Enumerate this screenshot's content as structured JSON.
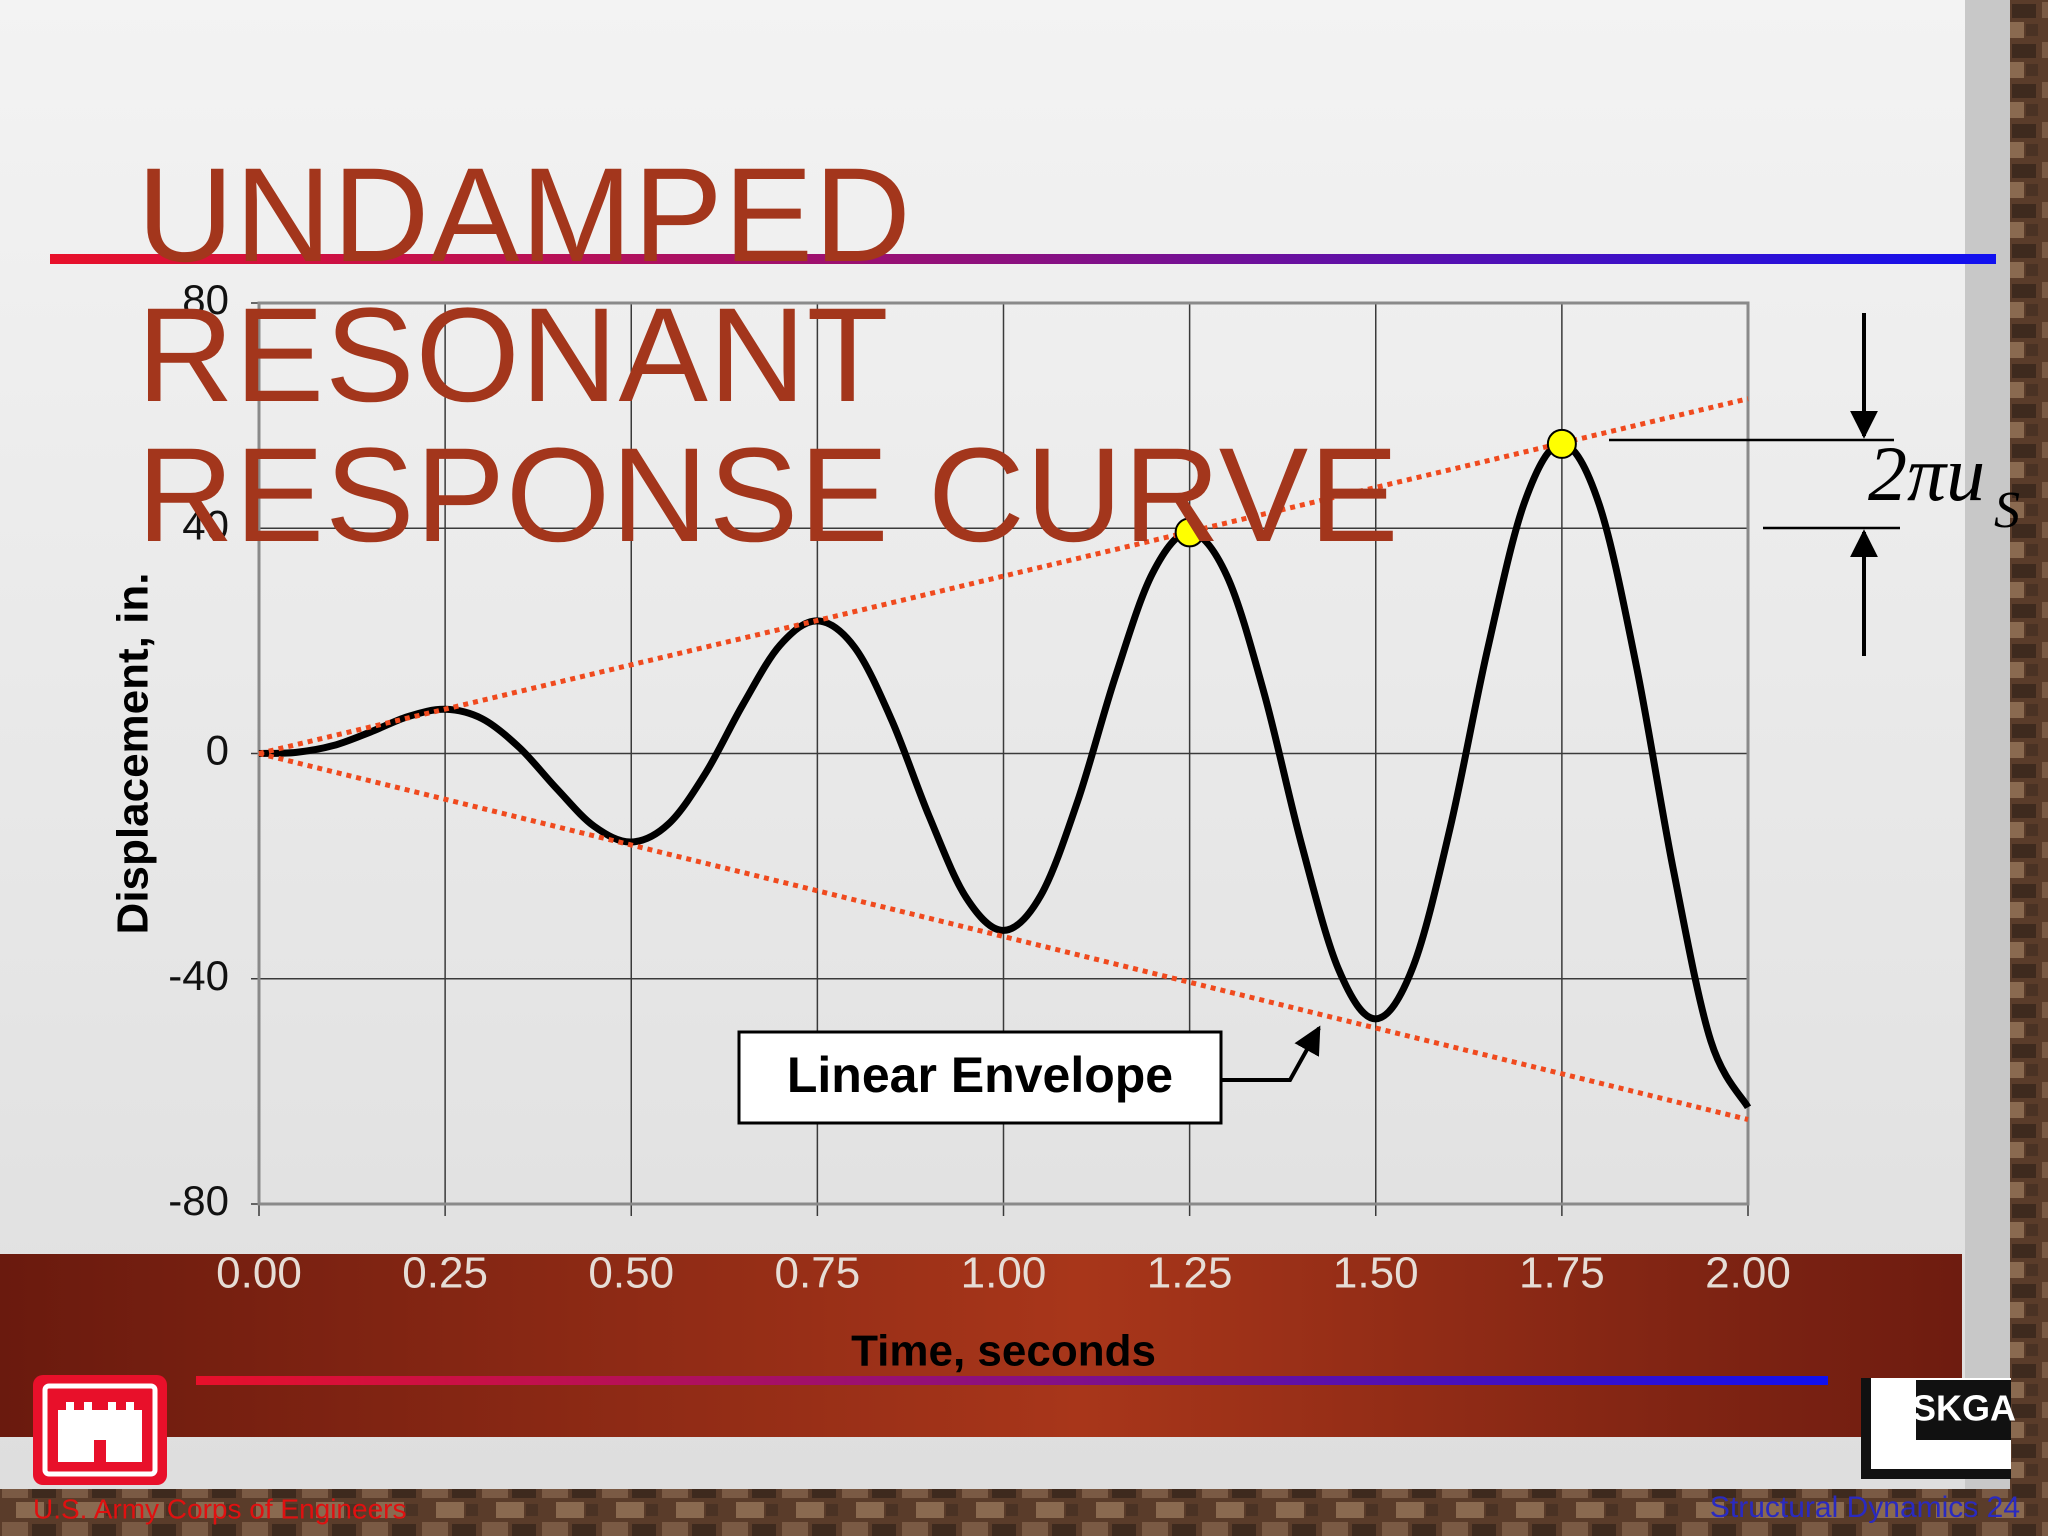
{
  "slide": {
    "footer_left": "U.S. Army Corps of Engineers",
    "footer_right": "Structural Dynamics 24",
    "logo": "SKGA"
  },
  "chart_data": {
    "type": "line",
    "title": "UNDAMPED RESONANT RESPONSE CURVE",
    "xlabel": "Time, seconds",
    "ylabel": "Displacement, in.",
    "xlim": [
      0,
      2
    ],
    "ylim": [
      -80,
      80
    ],
    "xticks": [
      {
        "value": 0,
        "label": "0.00"
      },
      {
        "value": 0.25,
        "label": "0.25"
      },
      {
        "value": 0.5,
        "label": "0.50"
      },
      {
        "value": 0.75,
        "label": "0.75"
      },
      {
        "value": 1,
        "label": "1.00"
      },
      {
        "value": 1.25,
        "label": "1.25"
      },
      {
        "value": 1.5,
        "label": "1.50"
      },
      {
        "value": 1.75,
        "label": "1.75"
      },
      {
        "value": 2,
        "label": "2.00"
      }
    ],
    "yticks": [
      -80,
      -40,
      0,
      40,
      80
    ],
    "grid": true,
    "series": [
      {
        "color": "#000000",
        "style": "solid",
        "x": [
          0,
          0.05,
          0.1,
          0.15,
          0.2,
          0.25,
          0.3,
          0.35,
          0.4,
          0.45,
          0.5,
          0.55,
          0.6,
          0.65,
          0.7,
          0.75,
          0.8,
          0.85,
          0.9,
          0.95,
          1,
          1.05,
          1.1,
          1.15,
          1.2,
          1.25,
          1.3,
          1.35,
          1.4,
          1.45,
          1.5,
          1.55,
          1.6,
          1.65,
          1.7,
          1.75,
          1.8,
          1.85,
          1.9,
          1.95,
          2
        ],
        "values": [
          0,
          0.2,
          1.41,
          3.83,
          6.55,
          7.85,
          6.16,
          1.02,
          -6.26,
          -12.91,
          -15.71,
          -12.51,
          -3.45,
          8.69,
          19.26,
          23.56,
          18.86,
          5.87,
          -11.11,
          -25.61,
          -31.42,
          -25.22,
          -8.3,
          13.54,
          31.97,
          39.27,
          31.57,
          10.73,
          -15.97,
          -38.32,
          -47.12,
          -37.92,
          -13.15,
          18.4,
          44.68,
          54.98,
          44.28,
          15.58,
          -20.82,
          -51.03,
          -62.83
        ]
      },
      {
        "color": "#f04a1e",
        "style": "dotted",
        "x": [
          0,
          2
        ],
        "values": [
          0,
          63
        ]
      },
      {
        "color": "#f04a1e",
        "style": "dotted",
        "x": [
          0,
          2
        ],
        "values": [
          0,
          -65
        ]
      },
      {
        "color": "#ffff00",
        "style": "marker",
        "x": [
          1.25,
          1.75
        ],
        "values": [
          39.27,
          54.98
        ]
      }
    ],
    "annotations": [
      {
        "text": "Linear Envelope"
      },
      {
        "text": "2πu",
        "subscript": "S"
      }
    ]
  }
}
